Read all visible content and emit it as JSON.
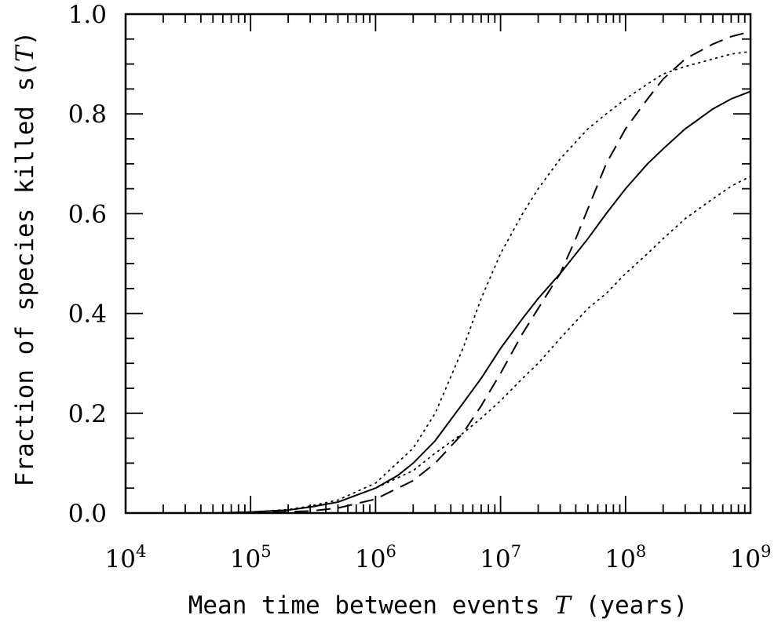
{
  "chart_data": {
    "type": "line",
    "xlabel": {
      "prefix": "Mean time between events ",
      "symbol": "T",
      "suffix": " (years)"
    },
    "ylabel": {
      "prefix": "Fraction of species killed s(",
      "symbol": "T",
      "suffix": ")"
    },
    "xscale": "log",
    "xlim": [
      10000,
      1000000000
    ],
    "ylim": [
      0.0,
      1.0
    ],
    "x_ticks": [
      {
        "base": "10",
        "exp": "4"
      },
      {
        "base": "10",
        "exp": "5"
      },
      {
        "base": "10",
        "exp": "6"
      },
      {
        "base": "10",
        "exp": "7"
      },
      {
        "base": "10",
        "exp": "8"
      },
      {
        "base": "10",
        "exp": "9"
      }
    ],
    "y_ticks": [
      "0.0",
      "0.2",
      "0.4",
      "0.6",
      "0.8",
      "1.0"
    ],
    "y_tick_values": [
      0.0,
      0.2,
      0.4,
      0.6,
      0.8,
      1.0
    ],
    "grid": false,
    "legend": "none",
    "series": [
      {
        "style": "solid",
        "color": "#000000",
        "x": [
          50000,
          100000,
          200000,
          300000,
          500000,
          1000000,
          1500000,
          2000000,
          3000000,
          5000000,
          7000000,
          10000000,
          15000000,
          20000000,
          30000000,
          50000000,
          70000000,
          100000000,
          150000000,
          200000000,
          300000000,
          500000000,
          700000000,
          1000000000
        ],
        "y": [
          0.0,
          0.002,
          0.006,
          0.012,
          0.022,
          0.05,
          0.075,
          0.1,
          0.145,
          0.22,
          0.27,
          0.33,
          0.39,
          0.43,
          0.48,
          0.55,
          0.6,
          0.65,
          0.7,
          0.73,
          0.77,
          0.81,
          0.83,
          0.845
        ]
      },
      {
        "style": "dashed",
        "color": "#000000",
        "x": [
          100000,
          300000,
          500000,
          1000000,
          2000000,
          3000000,
          5000000,
          7000000,
          10000000,
          15000000,
          20000000,
          30000000,
          40000000,
          50000000,
          70000000,
          100000000,
          150000000,
          200000000,
          300000000,
          500000000,
          700000000,
          1000000000
        ],
        "y": [
          0.0,
          0.004,
          0.01,
          0.028,
          0.065,
          0.1,
          0.16,
          0.215,
          0.28,
          0.36,
          0.41,
          0.48,
          0.55,
          0.61,
          0.7,
          0.77,
          0.83,
          0.87,
          0.91,
          0.94,
          0.955,
          0.965
        ]
      },
      {
        "style": "dotted",
        "color": "#000000",
        "x": [
          50000,
          100000,
          200000,
          300000,
          500000,
          1000000,
          2000000,
          3000000,
          5000000,
          7000000,
          10000000,
          15000000,
          20000000,
          30000000,
          50000000,
          70000000,
          100000000,
          150000000,
          200000000,
          300000000,
          500000000,
          700000000,
          1000000000
        ],
        "y": [
          0.0,
          0.002,
          0.007,
          0.014,
          0.026,
          0.06,
          0.13,
          0.2,
          0.33,
          0.43,
          0.52,
          0.6,
          0.65,
          0.71,
          0.77,
          0.8,
          0.83,
          0.86,
          0.88,
          0.895,
          0.91,
          0.92,
          0.925
        ]
      },
      {
        "style": "dotted",
        "color": "#000000",
        "x": [
          50000,
          100000,
          200000,
          300000,
          500000,
          1000000,
          2000000,
          3000000,
          5000000,
          7000000,
          10000000,
          15000000,
          20000000,
          30000000,
          50000000,
          70000000,
          100000000,
          150000000,
          200000000,
          300000000,
          500000000,
          700000000,
          1000000000
        ],
        "y": [
          0.0,
          0.002,
          0.006,
          0.012,
          0.022,
          0.05,
          0.085,
          0.12,
          0.16,
          0.19,
          0.225,
          0.27,
          0.3,
          0.35,
          0.41,
          0.44,
          0.48,
          0.52,
          0.55,
          0.59,
          0.63,
          0.655,
          0.675
        ]
      }
    ]
  }
}
